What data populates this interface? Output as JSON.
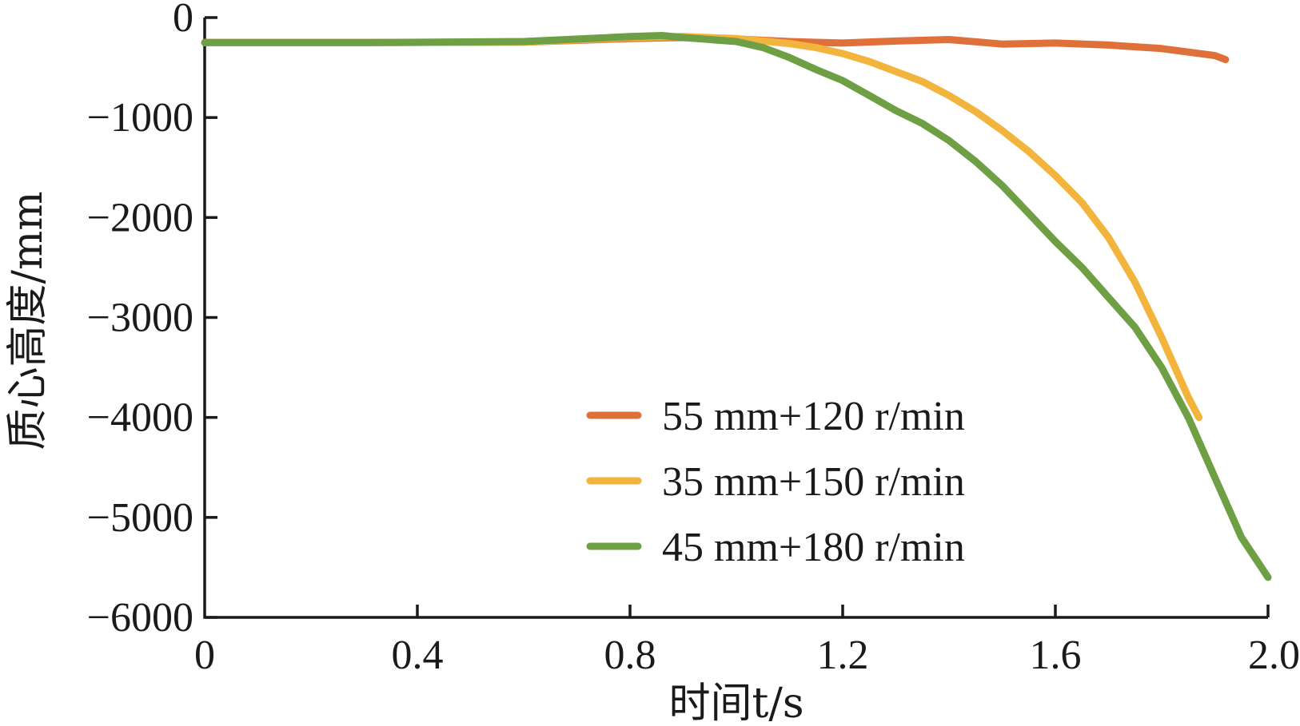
{
  "chart_data": {
    "type": "line",
    "xlabel": "时间t/s",
    "ylabel": "质心高度/mm",
    "xlim": [
      0,
      2.0
    ],
    "ylim": [
      -6000,
      0
    ],
    "x_ticks": [
      "0",
      "0.4",
      "0.8",
      "1.2",
      "1.6",
      "2.0"
    ],
    "x_tick_values": [
      0,
      0.4,
      0.8,
      1.2,
      1.6,
      2.0
    ],
    "y_ticks": [
      "0",
      "−1000",
      "−2000",
      "−3000",
      "−4000",
      "−5000",
      "−6000"
    ],
    "y_tick_values": [
      0,
      -1000,
      -2000,
      -3000,
      -4000,
      -5000,
      -6000
    ],
    "grid": false,
    "legend_position": "bottom-right",
    "series": [
      {
        "name": "55 mm+120 r/min",
        "color": "#e0703a",
        "x": [
          0,
          0.3,
          0.6,
          0.8,
          0.9,
          1.0,
          1.1,
          1.2,
          1.3,
          1.4,
          1.5,
          1.6,
          1.7,
          1.8,
          1.9,
          1.92
        ],
        "y": [
          -250,
          -250,
          -245,
          -210,
          -200,
          -215,
          -240,
          -255,
          -235,
          -220,
          -265,
          -255,
          -275,
          -310,
          -380,
          -420
        ]
      },
      {
        "name": "35 mm+150 r/min",
        "color": "#f2b43c",
        "x": [
          0,
          0.3,
          0.6,
          0.8,
          0.9,
          1.0,
          1.1,
          1.15,
          1.2,
          1.25,
          1.3,
          1.35,
          1.4,
          1.45,
          1.5,
          1.55,
          1.6,
          1.65,
          1.7,
          1.75,
          1.8,
          1.85,
          1.87
        ],
        "y": [
          -250,
          -250,
          -245,
          -200,
          -190,
          -210,
          -260,
          -300,
          -360,
          -440,
          -540,
          -640,
          -780,
          -940,
          -1130,
          -1340,
          -1580,
          -1850,
          -2200,
          -2650,
          -3200,
          -3800,
          -4000
        ]
      },
      {
        "name": "45 mm+180 r/min",
        "color": "#6f9f45",
        "x": [
          0,
          0.3,
          0.6,
          0.8,
          0.86,
          0.9,
          1.0,
          1.05,
          1.1,
          1.15,
          1.2,
          1.25,
          1.3,
          1.35,
          1.4,
          1.45,
          1.5,
          1.55,
          1.6,
          1.65,
          1.7,
          1.75,
          1.8,
          1.85,
          1.9,
          1.95,
          2.0
        ],
        "y": [
          -250,
          -250,
          -240,
          -190,
          -180,
          -200,
          -240,
          -300,
          -400,
          -520,
          -630,
          -780,
          -930,
          -1060,
          -1230,
          -1440,
          -1680,
          -1960,
          -2240,
          -2500,
          -2800,
          -3100,
          -3500,
          -4000,
          -4600,
          -5200,
          -5600
        ]
      }
    ]
  }
}
